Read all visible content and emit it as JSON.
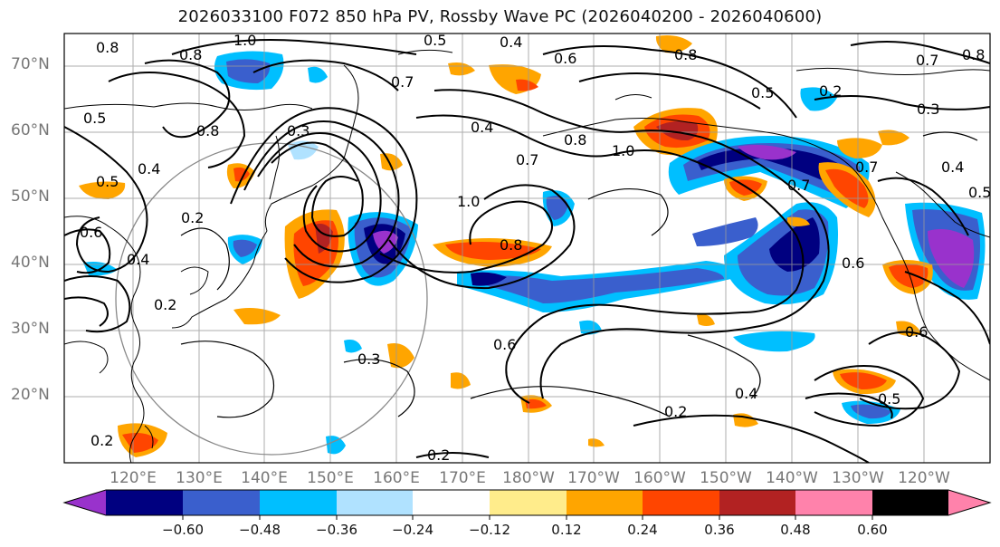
{
  "title": "2026033100 F072 850 hPa PV, Rossby Wave PC (2026040200 - 2026040600)",
  "lat_labels": [
    "70°N",
    "60°N",
    "50°N",
    "40°N",
    "30°N",
    "20°N"
  ],
  "lon_labels": [
    "120°E",
    "130°E",
    "140°E",
    "150°E",
    "160°E",
    "170°E",
    "180°W",
    "170°W",
    "160°W",
    "150°W",
    "140°W",
    "130°W",
    "120°W"
  ],
  "colorbar": {
    "ticks": [
      "−0.60",
      "−0.48",
      "−0.36",
      "−0.24",
      "−0.12",
      "0.12",
      "0.24",
      "0.36",
      "0.48",
      "0.60"
    ],
    "colors": [
      "#9932cc",
      "#000080",
      "#3a5fcd",
      "#00bfff",
      "#b0e2ff",
      "#ffffff",
      "#ffec8b",
      "#ffa500",
      "#ff4500",
      "#b22222",
      "#ff82ab"
    ]
  },
  "contour_labels": [
    "1.0",
    "0.8",
    "0.5",
    "0.4",
    "0.6",
    "0.8",
    "0.7",
    "0.8",
    "0.7",
    "0.3",
    "0.5",
    "0.8",
    "0.4",
    "0.7",
    "1.0",
    "0.8",
    "0.5",
    "0.4",
    "0.2",
    "0.3",
    "0.6",
    "0.4",
    "0.2",
    "0.5",
    "0.2",
    "0.3",
    "0.2",
    "1.0",
    "0.8",
    "0.7",
    "0.6",
    "0.4",
    "0.2",
    "0.5",
    "0.6",
    "0.4",
    "0.2",
    "0.5",
    "0.7",
    "0.8",
    "0.6"
  ],
  "colors": {
    "contour": "#000000",
    "grid": "#999999",
    "coast": "#000000",
    "ring": "#888888"
  }
}
